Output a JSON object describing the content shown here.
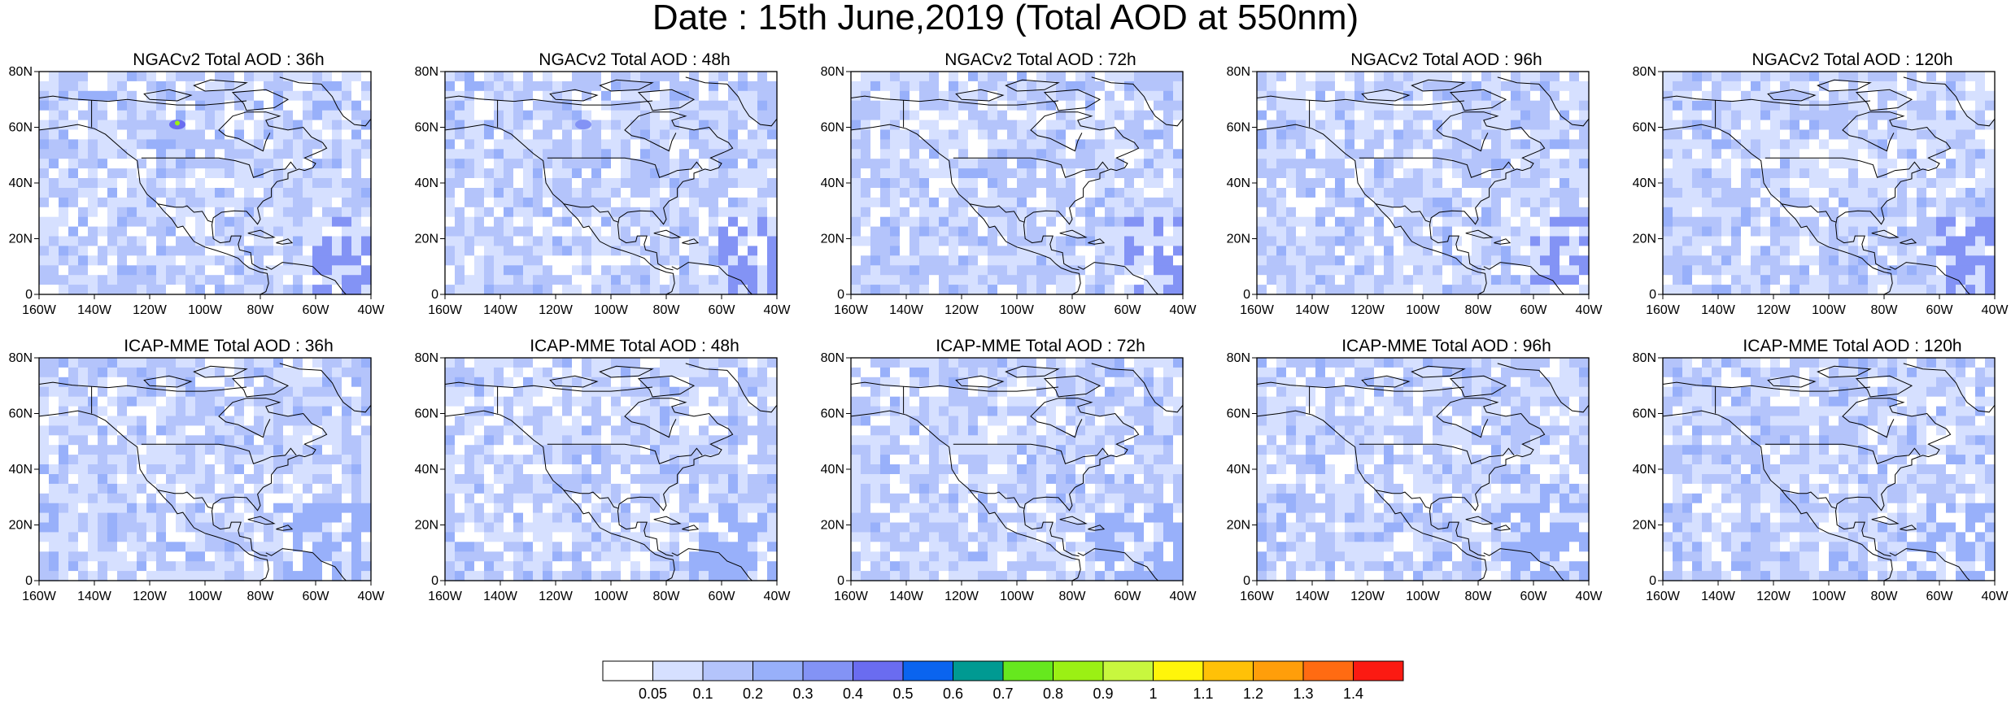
{
  "title": "Date : 15th June,2019 (Total AOD at 550nm)",
  "panels": [
    {
      "title": "NGACv2 Total AOD : 36h",
      "model": "NGACv2",
      "lead": "36h"
    },
    {
      "title": "NGACv2 Total AOD : 48h",
      "model": "NGACv2",
      "lead": "48h"
    },
    {
      "title": "NGACv2 Total AOD : 72h",
      "model": "NGACv2",
      "lead": "72h"
    },
    {
      "title": "NGACv2 Total AOD : 96h",
      "model": "NGACv2",
      "lead": "96h"
    },
    {
      "title": "NGACv2 Total AOD : 120h",
      "model": "NGACv2",
      "lead": "120h"
    },
    {
      "title": "ICAP-MME Total AOD : 36h",
      "model": "ICAP-MME",
      "lead": "36h"
    },
    {
      "title": "ICAP-MME Total AOD : 48h",
      "model": "ICAP-MME",
      "lead": "48h"
    },
    {
      "title": "ICAP-MME Total AOD : 72h",
      "model": "ICAP-MME",
      "lead": "72h"
    },
    {
      "title": "ICAP-MME Total AOD : 96h",
      "model": "ICAP-MME",
      "lead": "96h"
    },
    {
      "title": "ICAP-MME Total AOD : 120h",
      "model": "ICAP-MME",
      "lead": "120h"
    }
  ],
  "axes": {
    "lon_ticks": [
      "160W",
      "140W",
      "120W",
      "100W",
      "80W",
      "60W",
      "40W"
    ],
    "lon_values": [
      -160,
      -140,
      -120,
      -100,
      -80,
      -60,
      -40
    ],
    "lat_ticks": [
      "80N",
      "60N",
      "40N",
      "20N",
      "0"
    ],
    "lat_values": [
      80,
      60,
      40,
      20,
      0
    ],
    "lon_range": [
      -160,
      -40
    ],
    "lat_range": [
      0,
      80
    ]
  },
  "colorbar": {
    "labels": [
      "0.05",
      "0.1",
      "0.2",
      "0.3",
      "0.4",
      "0.5",
      "0.6",
      "0.7",
      "0.8",
      "0.9",
      "1",
      "1.1",
      "1.2",
      "1.3",
      "1.4"
    ],
    "colors": [
      "#ffffff",
      "#d6e0ff",
      "#b4c4fb",
      "#98b0fa",
      "#8393f5",
      "#6a6cf0",
      "#0a64ef",
      "#009a92",
      "#66e81e",
      "#9bf014",
      "#c8f73e",
      "#fff50a",
      "#ffc107",
      "#ff9e0a",
      "#ff6b12",
      "#fb1a12"
    ]
  }
}
